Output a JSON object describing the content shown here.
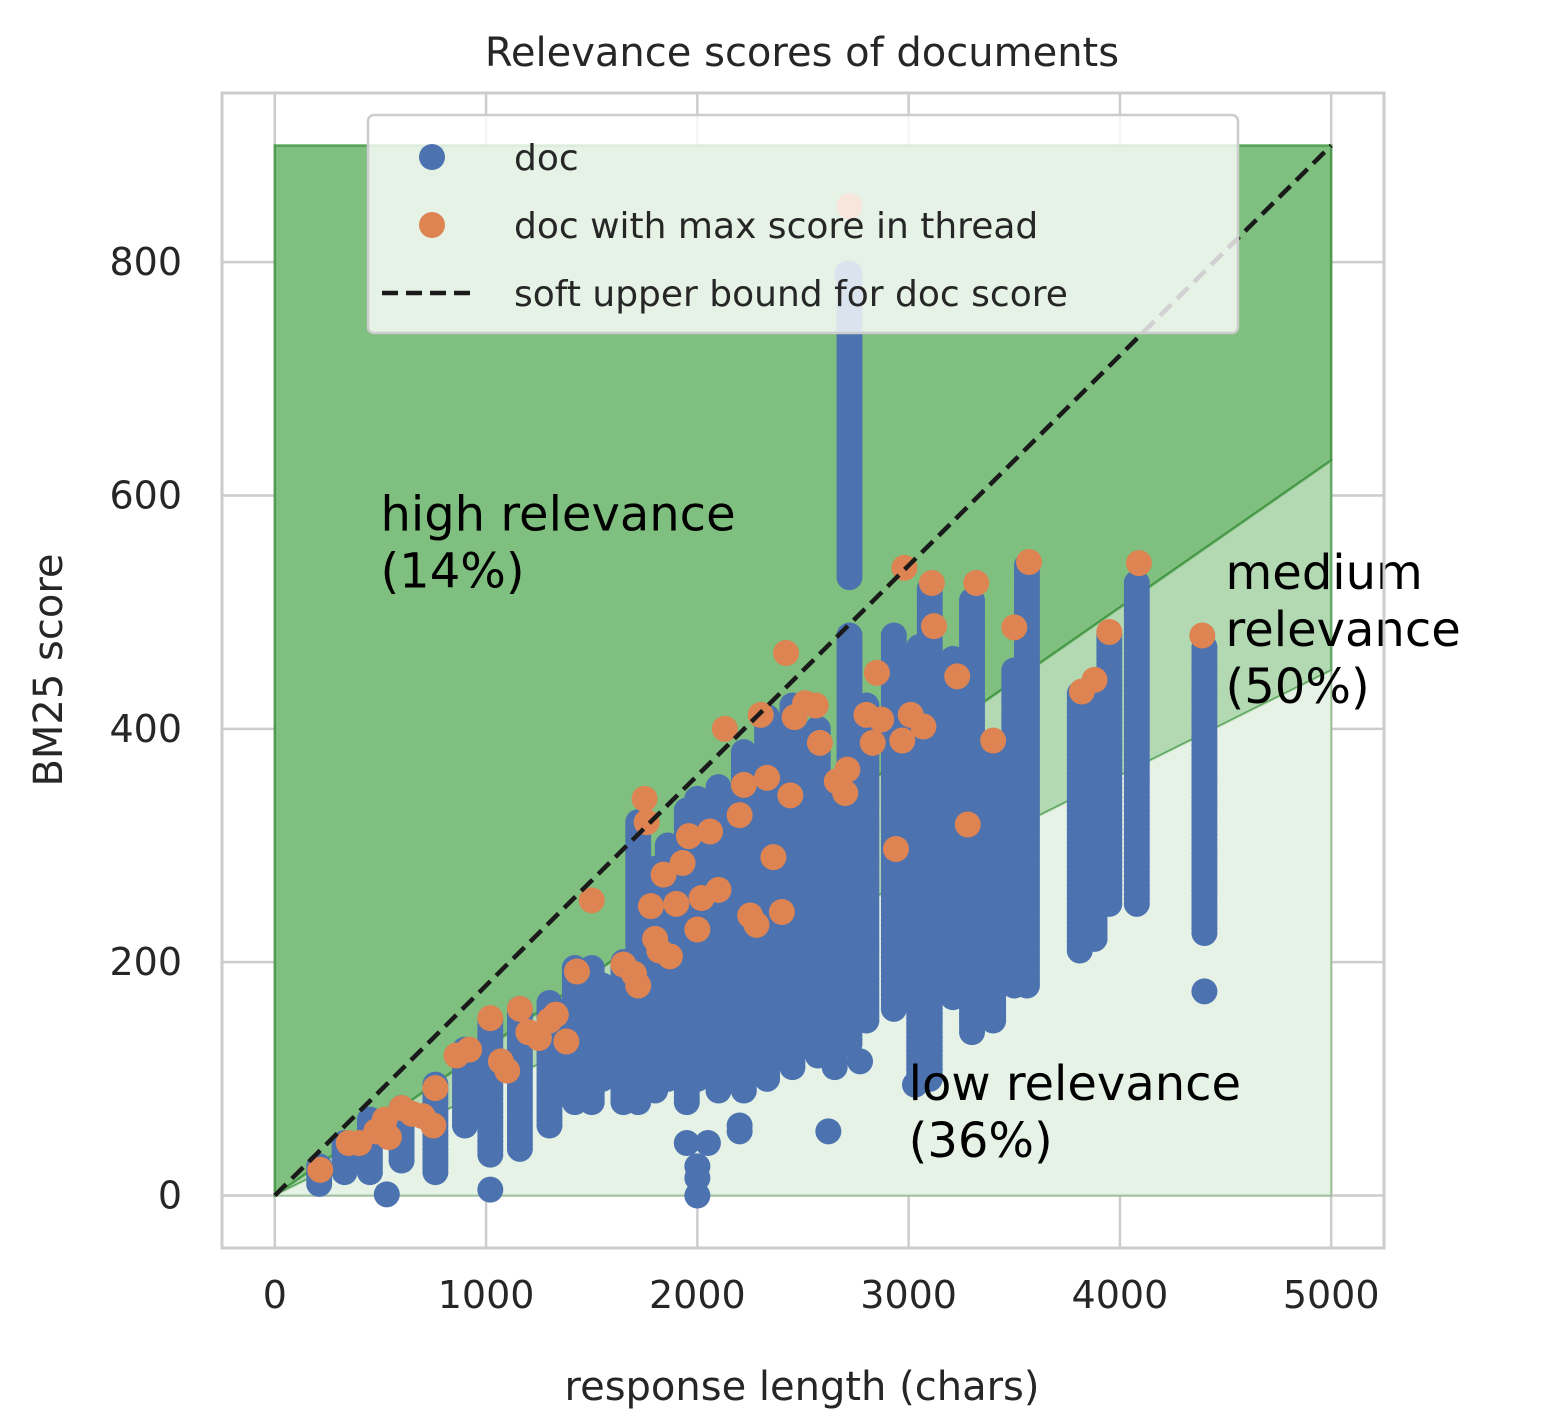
{
  "chart_data": {
    "type": "scatter",
    "title": "Relevance scores of documents",
    "xlabel": "response length (chars)",
    "ylabel": "BM25 score",
    "xlim": [
      -250,
      5250
    ],
    "ylim": [
      -45,
      945
    ],
    "xticks": [
      0,
      1000,
      2000,
      3000,
      4000,
      5000
    ],
    "yticks": [
      0,
      200,
      400,
      600,
      800
    ],
    "grid": true,
    "legend_placement": "upper center",
    "colors": {
      "doc": "#4C72B0",
      "max": "#DD8452",
      "bound": "#1A1A1A",
      "region_high": "#7FBF7F",
      "region_medium": "#B2D9B2",
      "region_low": "#E5F2E5",
      "region_edge": "#2E8B2E"
    },
    "regions": [
      {
        "id": "high",
        "lower_slope": 0.126,
        "label": "high relevance\n(14%)",
        "label_pos": [
          500,
          570
        ]
      },
      {
        "id": "medium",
        "lower_slope": 0.09,
        "upper_slope": 0.126,
        "label": "medium\nrelevance\n(50%)",
        "label_pos": [
          4500,
          520
        ]
      },
      {
        "id": "low",
        "upper_slope": 0.09,
        "label": "low relevance\n(36%)",
        "label_pos": [
          3000,
          82
        ]
      }
    ],
    "region_top": 900,
    "region_xmax": 5000,
    "bound_line": {
      "name": "soft upper bound for doc score",
      "x": [
        0,
        5000
      ],
      "y": [
        0,
        900
      ]
    },
    "series": [
      {
        "name": "doc",
        "columns": [
          {
            "x": 210,
            "ymin": 10,
            "ymax": 25
          },
          {
            "x": 330,
            "ymin": 20,
            "ymax": 45
          },
          {
            "x": 450,
            "ymin": 20,
            "ymax": 65
          },
          {
            "x": 600,
            "ymin": 30,
            "ymax": 75
          },
          {
            "x": 760,
            "ymin": 20,
            "ymax": 95
          },
          {
            "x": 900,
            "ymin": 60,
            "ymax": 125
          },
          {
            "x": 1020,
            "ymin": 35,
            "ymax": 150
          },
          {
            "x": 1160,
            "ymin": 40,
            "ymax": 160
          },
          {
            "x": 1300,
            "ymin": 60,
            "ymax": 165
          },
          {
            "x": 1420,
            "ymin": 80,
            "ymax": 195
          },
          {
            "x": 1500,
            "ymin": 80,
            "ymax": 195
          },
          {
            "x": 1550,
            "ymin": 100,
            "ymax": 180
          },
          {
            "x": 1650,
            "ymin": 80,
            "ymax": 200
          },
          {
            "x": 1720,
            "ymin": 80,
            "ymax": 320
          },
          {
            "x": 1800,
            "ymin": 90,
            "ymax": 280
          },
          {
            "x": 1860,
            "ymin": 100,
            "ymax": 300
          },
          {
            "x": 1950,
            "ymin": 80,
            "ymax": 330
          },
          {
            "x": 2000,
            "ymin": 100,
            "ymax": 340
          },
          {
            "x": 2100,
            "ymin": 90,
            "ymax": 350
          },
          {
            "x": 2220,
            "ymin": 90,
            "ymax": 380
          },
          {
            "x": 2330,
            "ymin": 100,
            "ymax": 410
          },
          {
            "x": 2450,
            "ymin": 110,
            "ymax": 420
          },
          {
            "x": 2570,
            "ymin": 120,
            "ymax": 400
          },
          {
            "x": 2650,
            "ymin": 110,
            "ymax": 340
          },
          {
            "x": 2720,
            "ymin": 530,
            "ymax": 790
          },
          {
            "x": 2720,
            "ymin": 130,
            "ymax": 480
          },
          {
            "x": 2800,
            "ymin": 150,
            "ymax": 420
          },
          {
            "x": 2930,
            "ymin": 160,
            "ymax": 480
          },
          {
            "x": 3050,
            "ymin": 100,
            "ymax": 470
          },
          {
            "x": 3100,
            "ymin": 100,
            "ymax": 520
          },
          {
            "x": 3210,
            "ymin": 170,
            "ymax": 460
          },
          {
            "x": 3300,
            "ymin": 140,
            "ymax": 510
          },
          {
            "x": 3400,
            "ymin": 150,
            "ymax": 380
          },
          {
            "x": 3500,
            "ymin": 180,
            "ymax": 450
          },
          {
            "x": 3560,
            "ymin": 180,
            "ymax": 540
          },
          {
            "x": 3810,
            "ymin": 210,
            "ymax": 430
          },
          {
            "x": 3880,
            "ymin": 220,
            "ymax": 440
          },
          {
            "x": 3950,
            "ymin": 250,
            "ymax": 480
          },
          {
            "x": 4080,
            "ymin": 250,
            "ymax": 525
          },
          {
            "x": 4400,
            "ymin": 225,
            "ymax": 470
          }
        ],
        "points": [
          {
            "x": 530,
            "y": 1
          },
          {
            "x": 1020,
            "y": 5
          },
          {
            "x": 2000,
            "y": 0
          },
          {
            "x": 1950,
            "y": 45
          },
          {
            "x": 2050,
            "y": 45
          },
          {
            "x": 2200,
            "y": 55
          },
          {
            "x": 2200,
            "y": 60
          },
          {
            "x": 2620,
            "y": 55
          },
          {
            "x": 4400,
            "y": 175
          },
          {
            "x": 3030,
            "y": 95
          },
          {
            "x": 2590,
            "y": 125
          },
          {
            "x": 2770,
            "y": 115
          },
          {
            "x": 2710,
            "y": 790
          },
          {
            "x": 2720,
            "y": 750
          },
          {
            "x": 2720,
            "y": 740
          },
          {
            "x": 2000,
            "y": 25
          },
          {
            "x": 2000,
            "y": 15
          }
        ]
      },
      {
        "name": "doc with max score in thread",
        "points": [
          {
            "x": 215,
            "y": 22
          },
          {
            "x": 350,
            "y": 45
          },
          {
            "x": 400,
            "y": 45
          },
          {
            "x": 480,
            "y": 55
          },
          {
            "x": 520,
            "y": 65
          },
          {
            "x": 540,
            "y": 50
          },
          {
            "x": 600,
            "y": 75
          },
          {
            "x": 650,
            "y": 70
          },
          {
            "x": 700,
            "y": 68
          },
          {
            "x": 750,
            "y": 60
          },
          {
            "x": 760,
            "y": 92
          },
          {
            "x": 860,
            "y": 120
          },
          {
            "x": 920,
            "y": 125
          },
          {
            "x": 1020,
            "y": 152
          },
          {
            "x": 1070,
            "y": 115
          },
          {
            "x": 1100,
            "y": 107
          },
          {
            "x": 1160,
            "y": 160
          },
          {
            "x": 1200,
            "y": 140
          },
          {
            "x": 1250,
            "y": 135
          },
          {
            "x": 1300,
            "y": 150
          },
          {
            "x": 1330,
            "y": 155
          },
          {
            "x": 1380,
            "y": 132
          },
          {
            "x": 1430,
            "y": 192
          },
          {
            "x": 1500,
            "y": 253
          },
          {
            "x": 1650,
            "y": 198
          },
          {
            "x": 1700,
            "y": 190
          },
          {
            "x": 1720,
            "y": 180
          },
          {
            "x": 1750,
            "y": 340
          },
          {
            "x": 1760,
            "y": 320
          },
          {
            "x": 1780,
            "y": 248
          },
          {
            "x": 1800,
            "y": 220
          },
          {
            "x": 1820,
            "y": 210
          },
          {
            "x": 1840,
            "y": 275
          },
          {
            "x": 1870,
            "y": 205
          },
          {
            "x": 1900,
            "y": 250
          },
          {
            "x": 1930,
            "y": 285
          },
          {
            "x": 1960,
            "y": 308
          },
          {
            "x": 2000,
            "y": 228
          },
          {
            "x": 2020,
            "y": 255
          },
          {
            "x": 2060,
            "y": 312
          },
          {
            "x": 2100,
            "y": 262
          },
          {
            "x": 2130,
            "y": 400
          },
          {
            "x": 2200,
            "y": 326
          },
          {
            "x": 2220,
            "y": 352
          },
          {
            "x": 2250,
            "y": 240
          },
          {
            "x": 2280,
            "y": 232
          },
          {
            "x": 2300,
            "y": 412
          },
          {
            "x": 2330,
            "y": 358
          },
          {
            "x": 2360,
            "y": 290
          },
          {
            "x": 2400,
            "y": 243
          },
          {
            "x": 2420,
            "y": 465
          },
          {
            "x": 2440,
            "y": 343
          },
          {
            "x": 2460,
            "y": 410
          },
          {
            "x": 2510,
            "y": 422
          },
          {
            "x": 2560,
            "y": 420
          },
          {
            "x": 2580,
            "y": 388
          },
          {
            "x": 2660,
            "y": 355
          },
          {
            "x": 2700,
            "y": 345
          },
          {
            "x": 2710,
            "y": 365
          },
          {
            "x": 2720,
            "y": 848
          },
          {
            "x": 2800,
            "y": 412
          },
          {
            "x": 2830,
            "y": 388
          },
          {
            "x": 2850,
            "y": 448
          },
          {
            "x": 2870,
            "y": 408
          },
          {
            "x": 2940,
            "y": 297
          },
          {
            "x": 2970,
            "y": 390
          },
          {
            "x": 2980,
            "y": 538
          },
          {
            "x": 3010,
            "y": 412
          },
          {
            "x": 3070,
            "y": 402
          },
          {
            "x": 3110,
            "y": 525
          },
          {
            "x": 3120,
            "y": 488
          },
          {
            "x": 3230,
            "y": 445
          },
          {
            "x": 3280,
            "y": 318
          },
          {
            "x": 3320,
            "y": 525
          },
          {
            "x": 3400,
            "y": 390
          },
          {
            "x": 3500,
            "y": 487
          },
          {
            "x": 3570,
            "y": 543
          },
          {
            "x": 3820,
            "y": 432
          },
          {
            "x": 3880,
            "y": 442
          },
          {
            "x": 3950,
            "y": 483
          },
          {
            "x": 4090,
            "y": 542
          },
          {
            "x": 4390,
            "y": 480
          }
        ]
      }
    ],
    "legend": [
      {
        "label": "doc",
        "marker": "dot",
        "color": "#4C72B0"
      },
      {
        "label": "doc with max score in thread",
        "marker": "dot",
        "color": "#DD8452"
      },
      {
        "label": "soft upper bound for doc score",
        "marker": "dash",
        "color": "#1A1A1A"
      }
    ]
  }
}
